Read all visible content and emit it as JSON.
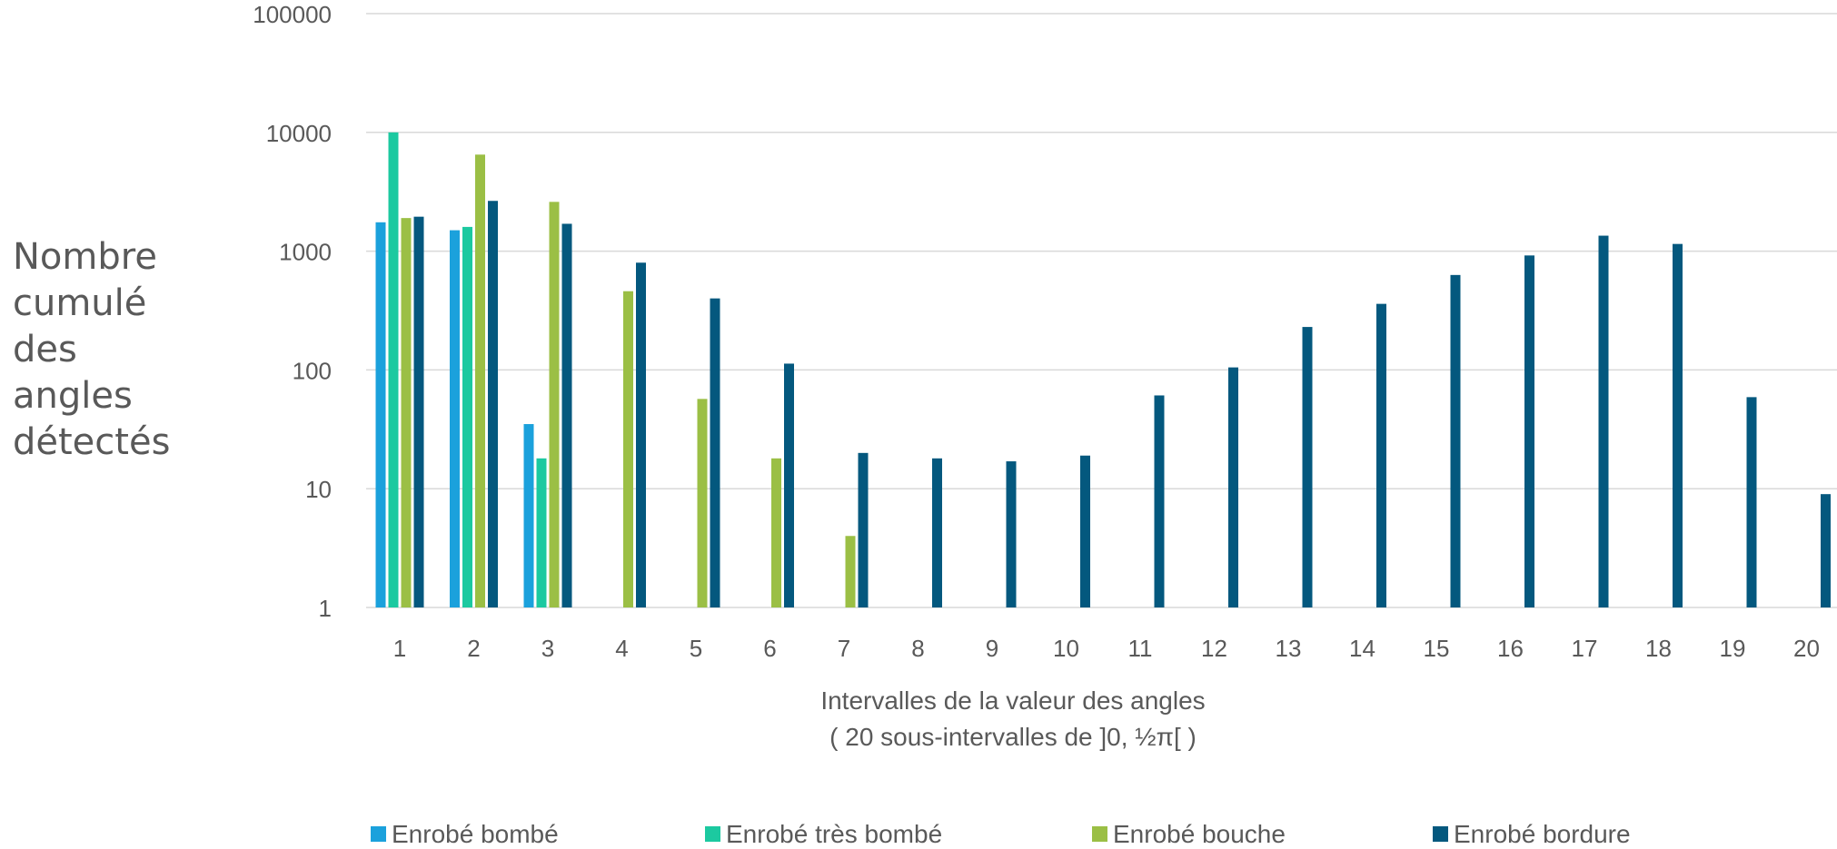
{
  "chart_data": {
    "type": "bar",
    "title": "",
    "xlabel": "Intervalles de la valeur des angles",
    "xlabel_sub": "( 20 sous-intervalles de ]0, ½π[ )",
    "ylabel": "Nombre\ncumulé\ndes\nangles\ndétectés",
    "yscale": "log",
    "ylim": [
      1,
      100000
    ],
    "yticks": [
      "1",
      "10",
      "100",
      "1000",
      "10000",
      "100000"
    ],
    "grid": true,
    "legend_position": "bottom",
    "categories": [
      "1",
      "2",
      "3",
      "4",
      "5",
      "6",
      "7",
      "8",
      "9",
      "10",
      "11",
      "12",
      "13",
      "14",
      "15",
      "16",
      "17",
      "18",
      "19",
      "20"
    ],
    "series": [
      {
        "name": "Enrobé bombé",
        "color": "#1ba1dc",
        "values": [
          1750,
          1500,
          35,
          null,
          null,
          null,
          null,
          null,
          null,
          null,
          null,
          null,
          null,
          null,
          null,
          null,
          null,
          null,
          null,
          null
        ]
      },
      {
        "name": "Enrobé très bombé",
        "color": "#1cc9a0",
        "values": [
          10000,
          1600,
          18,
          null,
          null,
          null,
          null,
          null,
          null,
          null,
          null,
          null,
          null,
          null,
          null,
          null,
          null,
          null,
          null,
          null
        ]
      },
      {
        "name": "Enrobé bouche",
        "color": "#9bbf45",
        "values": [
          1900,
          6500,
          2600,
          460,
          57,
          18,
          4,
          null,
          null,
          null,
          null,
          null,
          null,
          null,
          null,
          null,
          null,
          null,
          null,
          null
        ]
      },
      {
        "name": "Enrobé bordure",
        "color": "#04587e",
        "values": [
          1950,
          2650,
          1700,
          800,
          400,
          113,
          20,
          18,
          17,
          19,
          61,
          105,
          230,
          360,
          630,
          920,
          1350,
          1150,
          59,
          9
        ]
      }
    ]
  }
}
